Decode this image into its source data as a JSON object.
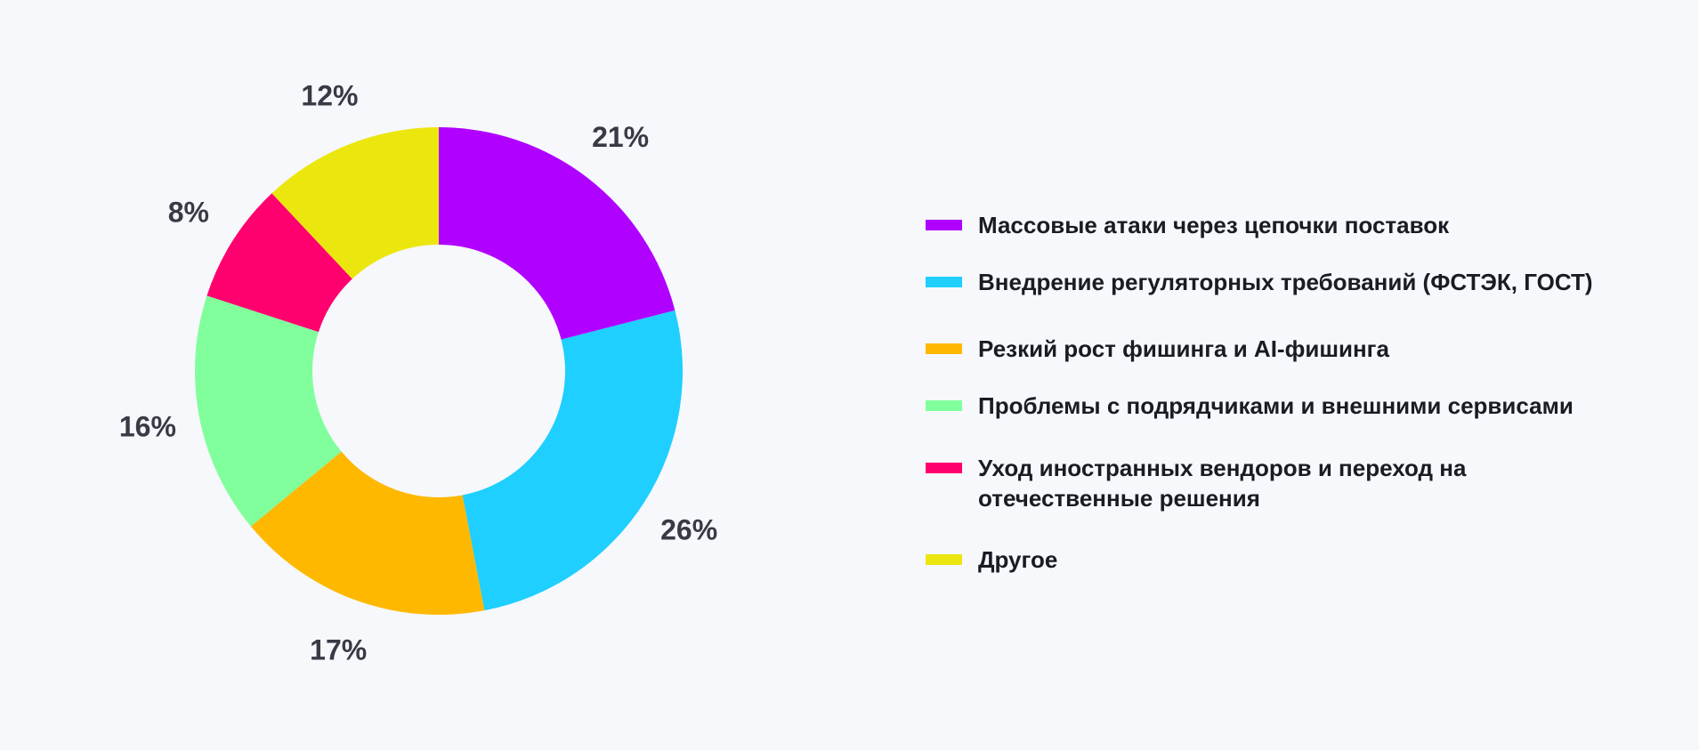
{
  "chart_data": {
    "type": "pie",
    "variant": "donut",
    "title": "",
    "categories": [
      "Массовые атаки через цепочки поставок",
      "Внедрение регуляторных требований (ФСТЭК, ГОСТ)",
      "Резкий рост фишинга и AI-фишинга",
      "Проблемы с подрядчиками и внешними сервисами",
      "Уход иностранных вендоров и переход на отечественные решения",
      "Другое"
    ],
    "values": [
      21,
      26,
      17,
      16,
      8,
      12
    ],
    "labels": [
      "21%",
      "26%",
      "17%",
      "16%",
      "8%",
      "12%"
    ],
    "colors": [
      "#b000ff",
      "#1ecfff",
      "#ffb800",
      "#80ff9c",
      "#ff006e",
      "#ece60f"
    ],
    "legend_position": "right",
    "start": "top",
    "direction": "clockwise"
  },
  "legend": {
    "items": [
      {
        "label": "Массовые атаки через цепочки поставок",
        "color": "#b000ff"
      },
      {
        "label": "Внедрение регуляторных требований (ФСТЭК, ГОСТ)",
        "color": "#1ecfff"
      },
      {
        "label": "Резкий рост фишинга и AI-фишинга",
        "color": "#ffb800"
      },
      {
        "label": "Проблемы с подрядчиками и внешними сервисами",
        "color": "#80ff9c"
      },
      {
        "label": "Уход иностранных вендоров и переход на отечественные решения",
        "color": "#ff006e"
      },
      {
        "label": "Другое",
        "color": "#ece60f"
      }
    ]
  }
}
